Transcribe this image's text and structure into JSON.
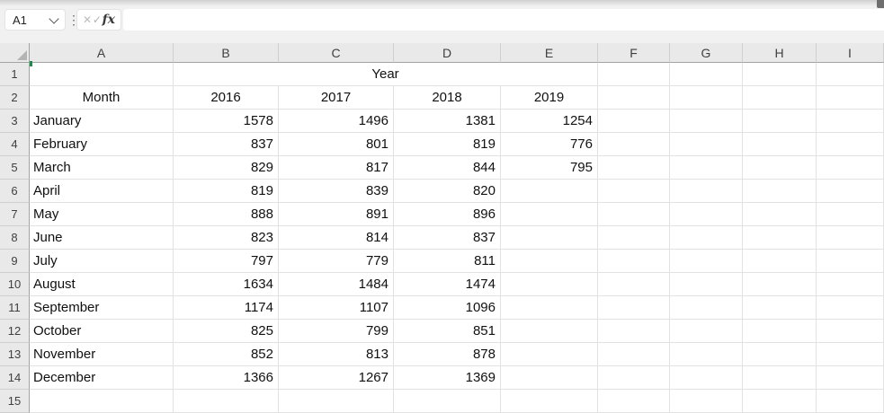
{
  "chrome": {
    "name_box_value": "A1",
    "menu_dots": "⋮",
    "cancel_glyph": "✕",
    "enter_glyph": "✓",
    "fx_label": "fx",
    "formula_value": ""
  },
  "sheet": {
    "column_letters": [
      "A",
      "B",
      "C",
      "D",
      "E",
      "F",
      "G",
      "H",
      "I"
    ],
    "row_numbers": [
      "1",
      "2",
      "3",
      "4",
      "5",
      "6",
      "7",
      "8",
      "9",
      "10",
      "11",
      "12",
      "13",
      "14",
      "15"
    ],
    "merged_title": {
      "row": 1,
      "start_col": "B",
      "end_col": "E",
      "text": "Year"
    },
    "header_row": {
      "row": 2,
      "month_label": "Month",
      "years": [
        "2016",
        "2017",
        "2018",
        "2019"
      ]
    },
    "data_rows": [
      {
        "row": 3,
        "month": "January",
        "values": [
          "1578",
          "1496",
          "1381",
          "1254"
        ]
      },
      {
        "row": 4,
        "month": "February",
        "values": [
          "837",
          "801",
          "819",
          "776"
        ]
      },
      {
        "row": 5,
        "month": "March",
        "values": [
          "829",
          "817",
          "844",
          "795"
        ]
      },
      {
        "row": 6,
        "month": "April",
        "values": [
          "819",
          "839",
          "820"
        ]
      },
      {
        "row": 7,
        "month": "May",
        "values": [
          "888",
          "891",
          "896"
        ]
      },
      {
        "row": 8,
        "month": "June",
        "values": [
          "823",
          "814",
          "837"
        ]
      },
      {
        "row": 9,
        "month": "July",
        "values": [
          "797",
          "779",
          "811"
        ]
      },
      {
        "row": 10,
        "month": "August",
        "values": [
          "1634",
          "1484",
          "1474"
        ]
      },
      {
        "row": 11,
        "month": "September",
        "values": [
          "1174",
          "1107",
          "1096"
        ]
      },
      {
        "row": 12,
        "month": "October",
        "values": [
          "825",
          "799",
          "851"
        ]
      },
      {
        "row": 13,
        "month": "November",
        "values": [
          "852",
          "813",
          "878"
        ]
      },
      {
        "row": 14,
        "month": "December",
        "values": [
          "1366",
          "1267",
          "1369"
        ]
      }
    ],
    "selection": {
      "active_cell": "A1"
    }
  },
  "colors": {
    "accent_green": "#1d8a4e",
    "header_bg": "#e9e9e9",
    "gridline": "#e2e2e2",
    "header_border_dark": "#a3a3a3",
    "chrome_bg": "#f1f1f1"
  }
}
